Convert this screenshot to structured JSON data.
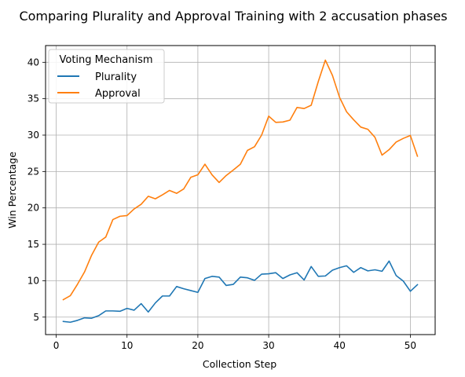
{
  "chart_data": {
    "type": "line",
    "title": "Comparing Plurality and Approval Training with 2 accusation phases",
    "xlabel": "Collection Step",
    "ylabel": "Win Percentage",
    "xlim": [
      -1.5,
      53.5
    ],
    "ylim": [
      2.6,
      42.3
    ],
    "xticks": [
      0,
      10,
      20,
      30,
      40,
      50
    ],
    "yticks": [
      5,
      10,
      15,
      20,
      25,
      30,
      35,
      40
    ],
    "grid": true,
    "legend": {
      "title": "Voting Mechanism",
      "position": "top-left"
    },
    "x": [
      1,
      2,
      3,
      4,
      5,
      6,
      7,
      8,
      9,
      10,
      11,
      12,
      13,
      14,
      15,
      16,
      17,
      18,
      19,
      20,
      21,
      22,
      23,
      24,
      25,
      26,
      27,
      28,
      29,
      30,
      31,
      32,
      33,
      34,
      35,
      36,
      37,
      38,
      39,
      40,
      41,
      42,
      43,
      44,
      45,
      46,
      47,
      48,
      49,
      50,
      51
    ],
    "series": [
      {
        "name": "Plurality",
        "color": "#1f77b4",
        "values": [
          4.4,
          4.3,
          4.55,
          4.9,
          4.85,
          5.2,
          5.85,
          5.85,
          5.8,
          6.2,
          5.95,
          6.85,
          5.7,
          6.95,
          7.9,
          7.9,
          9.2,
          8.9,
          8.65,
          8.4,
          10.3,
          10.6,
          10.5,
          9.35,
          9.5,
          10.5,
          10.4,
          10.05,
          10.9,
          10.95,
          11.1,
          10.3,
          10.8,
          11.1,
          10.1,
          11.95,
          10.6,
          10.65,
          11.45,
          11.8,
          12.05,
          11.15,
          11.8,
          11.35,
          11.5,
          11.3,
          12.7,
          10.7,
          9.95,
          8.55,
          9.45
        ]
      },
      {
        "name": "Approval",
        "color": "#ff7f0e",
        "values": [
          7.4,
          7.95,
          9.5,
          11.2,
          13.5,
          15.3,
          16.0,
          18.4,
          18.85,
          18.95,
          19.85,
          20.5,
          21.6,
          21.25,
          21.8,
          22.4,
          22.0,
          22.6,
          24.2,
          24.55,
          26.0,
          24.55,
          23.5,
          24.45,
          25.2,
          26.0,
          27.9,
          28.4,
          30.0,
          32.6,
          31.75,
          31.8,
          32.05,
          33.8,
          33.65,
          34.1,
          37.35,
          40.3,
          38.2,
          35.2,
          33.2,
          32.1,
          31.1,
          30.8,
          29.7,
          27.25,
          28.0,
          29.05,
          29.55,
          29.95,
          27.1
        ]
      }
    ]
  }
}
